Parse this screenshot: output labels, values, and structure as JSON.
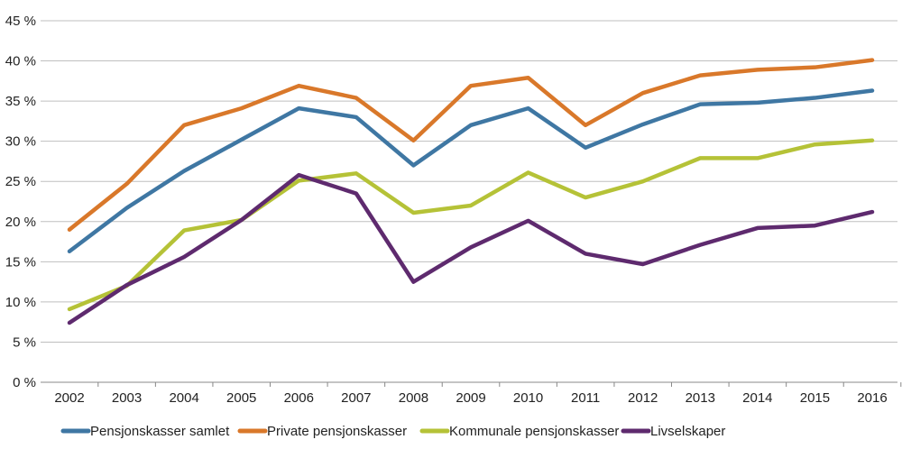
{
  "chart_data": {
    "type": "line",
    "title": "",
    "xlabel": "",
    "ylabel": "",
    "x": [
      "2002",
      "2003",
      "2004",
      "2005",
      "2006",
      "2007",
      "2008",
      "2009",
      "2010",
      "2011",
      "2012",
      "2013",
      "2014",
      "2015",
      "2016"
    ],
    "ylim": [
      0,
      45
    ],
    "yticks": [
      0,
      5,
      10,
      15,
      20,
      25,
      30,
      35,
      40,
      45
    ],
    "ytick_labels": [
      "0 %",
      "5 %",
      "10 %",
      "15 %",
      "20 %",
      "25 %",
      "30 %",
      "35 %",
      "40 %",
      "45 %"
    ],
    "grid": true,
    "legend_position": "bottom",
    "series": [
      {
        "name": "Pensjonskasser samlet",
        "color": "#3f77a3",
        "values": [
          16.3,
          21.7,
          26.3,
          30.2,
          34.1,
          33.0,
          27.0,
          32.0,
          34.1,
          29.2,
          32.1,
          34.6,
          34.8,
          35.4,
          36.3
        ]
      },
      {
        "name": "Private pensjonskasser",
        "color": "#d9782a",
        "values": [
          19.0,
          24.7,
          32.0,
          34.1,
          36.9,
          35.4,
          30.1,
          36.9,
          37.9,
          32.0,
          36.0,
          38.2,
          38.9,
          39.2,
          40.1
        ]
      },
      {
        "name": "Kommunale pensjonskasser",
        "color": "#b5c237",
        "values": [
          9.1,
          12.0,
          18.9,
          20.2,
          25.1,
          26.0,
          21.1,
          22.0,
          26.1,
          23.0,
          25.0,
          27.9,
          27.9,
          29.6,
          30.1
        ]
      },
      {
        "name": "Livselskaper",
        "color": "#5e2a6e",
        "values": [
          7.4,
          12.1,
          15.6,
          20.2,
          25.8,
          23.5,
          12.5,
          16.8,
          20.1,
          16.0,
          14.7,
          17.1,
          19.2,
          19.5,
          21.2
        ]
      }
    ]
  }
}
